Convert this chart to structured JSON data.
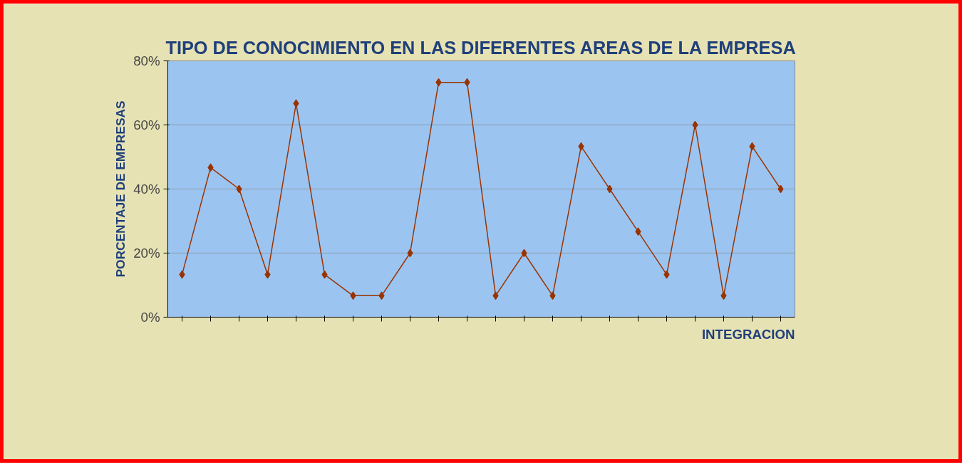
{
  "chart_data": {
    "type": "line",
    "title": "TIPO DE CONOCIMIENTO EN LAS DIFERENTES AREAS DE LA EMPRESA",
    "ylabel": "PORCENTAJE DE EMPRESAS",
    "xlabel": "INTEGRACION",
    "categories": [
      null,
      null,
      null,
      null,
      null,
      null,
      null,
      null,
      null,
      null,
      null,
      null,
      null,
      null,
      null,
      null,
      null,
      null,
      null,
      null,
      null,
      null
    ],
    "series": [
      {
        "color": "#993300",
        "values": [
          13.3,
          46.7,
          40,
          13.3,
          66.7,
          13.3,
          6.7,
          6.7,
          20,
          73.3,
          73.3,
          6.7,
          20,
          6.7,
          53.3,
          40,
          26.7,
          13.3,
          60,
          6.7,
          53.3,
          40
        ]
      }
    ],
    "ylim": [
      0,
      80
    ],
    "yticks": [
      {
        "value": 0,
        "label": "0%"
      },
      {
        "value": 20,
        "label": "20%"
      },
      {
        "value": 40,
        "label": "40%"
      },
      {
        "value": 60,
        "label": "60%"
      },
      {
        "value": 80,
        "label": "80%"
      }
    ],
    "grid": "y",
    "marker": "diamond",
    "line_style": "solid"
  }
}
